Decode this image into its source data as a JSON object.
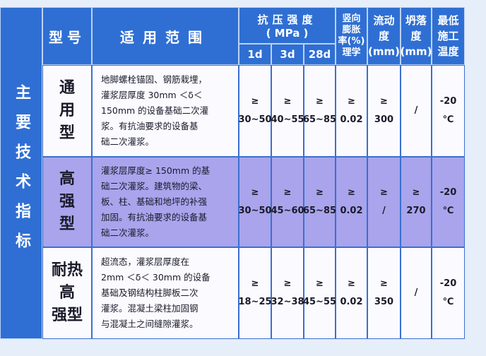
{
  "side_title": "主要技术指标",
  "header": {
    "type": "型号",
    "scope": "适用范围",
    "strength": [
      "抗压强度",
      "( MPa )"
    ],
    "strength_ages": [
      "1d",
      "3d",
      "28d"
    ],
    "expansion": [
      "竖向",
      "膨胀",
      "率(%)",
      "理学"
    ],
    "flow": [
      "流动",
      "度",
      "(mm)"
    ],
    "slump": [
      "坍落",
      "度",
      "(mm)"
    ],
    "temperature": [
      "最低",
      "施工",
      "温度"
    ]
  },
  "rows": [
    {
      "type": [
        "通",
        "用",
        "型"
      ],
      "scope": [
        "地脚螺栓锚固、钢筋栽埋，",
        "灌浆层厚度 30mm ＜δ＜",
        "150mm 的设备基础二次灌",
        "浆。有抗油要求的设备基",
        "础二次灌浆。"
      ],
      "values": [
        [
          "≥",
          "30~50"
        ],
        [
          "≥",
          "40~55"
        ],
        [
          "≥",
          "65~85"
        ],
        [
          "≥",
          "0.02"
        ],
        [
          "≥",
          "300"
        ],
        [
          "/"
        ],
        [
          "-20",
          "℃"
        ]
      ]
    },
    {
      "type": [
        "高",
        "强",
        "型"
      ],
      "scope": [
        "灌浆层厚度≥ 150mm 的基",
        "础二次灌浆。建筑物的梁、",
        "板、柱、基础和地坪的补强",
        "加固。有抗油要求的设备基",
        "础二次灌浆。"
      ],
      "values": [
        [
          "≥",
          "30~50"
        ],
        [
          "≥",
          "45~60"
        ],
        [
          "≥",
          "65~85"
        ],
        [
          "≥",
          "0.02"
        ],
        [
          "≥",
          "/"
        ],
        [
          "≥",
          "270"
        ],
        [
          "-20",
          "℃"
        ]
      ]
    },
    {
      "type": [
        "耐热",
        "高",
        "强型"
      ],
      "scope": [
        "超流态，灌浆层厚度在",
        "2mm ＜δ＜ 30mm 的设备",
        "基础及钢结构柱脚板二次",
        "灌浆。混凝土梁柱加固钢",
        "与混凝土之间缝隙灌浆。"
      ],
      "values": [
        [
          "≥",
          "18~25"
        ],
        [
          "≥",
          "32~38"
        ],
        [
          "≥",
          "45~55"
        ],
        [
          "≥",
          "0.02"
        ],
        [
          "≥",
          "350"
        ],
        [
          "/"
        ],
        [
          "-20",
          "℃"
        ]
      ]
    }
  ]
}
